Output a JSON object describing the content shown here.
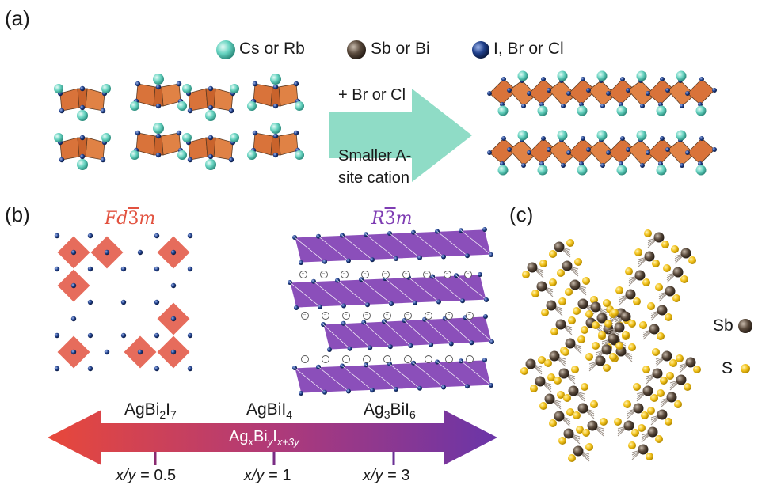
{
  "panels": {
    "a": "(a)",
    "b": "(b)",
    "c": "(c)"
  },
  "legend_a": [
    {
      "label": "Cs or Rb",
      "color": "#66d3c0",
      "icon": "cs-rb-atom-icon"
    },
    {
      "label": "Sb or Bi",
      "color": "#5a4a3c",
      "icon": "sb-bi-atom-icon"
    },
    {
      "label": "I, Br or Cl",
      "color": "#1f3f8a",
      "icon": "halide-atom-icon"
    }
  ],
  "arrow_a": {
    "top": "+ Br or Cl",
    "bottom_line1": "Smaller A-",
    "bottom_line2": "site cation",
    "color": "#8fdcc6"
  },
  "panel_b": {
    "left_group": {
      "prefix": "Fd",
      "bar": "3",
      "suffix": "m",
      "color": "#e2523f"
    },
    "right_group": {
      "prefix": "R",
      "bar": "3",
      "suffix": "m",
      "color": "#7e3cb3"
    },
    "compounds": [
      {
        "base": "AgBi",
        "sub1": "2",
        "mid": "I",
        "sub2": "7"
      },
      {
        "base": "AgBiI",
        "sub1": "4",
        "mid": "",
        "sub2": ""
      },
      {
        "base": "Ag",
        "sub1": "3",
        "mid": "BiI",
        "sub2": "6"
      }
    ],
    "formula": {
      "a": "Ag",
      "x": "x",
      "b": "Bi",
      "y": "y",
      "c": "I",
      "sub": "x+3y"
    },
    "ticks": [
      {
        "var": "x/y",
        "eq": " = 0.5"
      },
      {
        "var": "x/y",
        "eq": " = 1"
      },
      {
        "var": "x/y",
        "eq": " = 3"
      }
    ],
    "gradient": [
      "#e8483a",
      "#b03a78",
      "#6a35a8"
    ]
  },
  "legend_c": [
    {
      "label": "Sb",
      "color": "#5a4a3c",
      "icon": "sb-atom-icon"
    },
    {
      "label": "S",
      "color": "#f2c21b",
      "icon": "s-atom-icon"
    }
  ]
}
